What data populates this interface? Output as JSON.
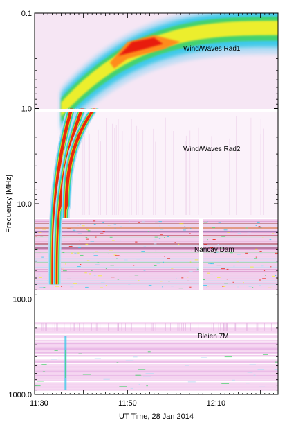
{
  "chart_data": {
    "type": "heatmap",
    "title": "",
    "xlabel": "UT Time, 28 Jan 2014",
    "ylabel": "Frequency [MHz]",
    "x_unit": "UT",
    "x_range": [
      "11:29",
      "12:24"
    ],
    "x_ticks": [
      "11:30",
      "11:50",
      "12:10"
    ],
    "y_scale": "log",
    "y_range": [
      0.1,
      1000.0
    ],
    "y_ticks": [
      "0.1",
      "1.0",
      "10.0",
      "100.0",
      "1000.0"
    ],
    "colormap": [
      "#f2d8f0",
      "#b8dcf4",
      "#33c8e8",
      "#44d36a",
      "#f5f02a",
      "#ff8c1a",
      "#e81c0c"
    ],
    "instruments": [
      {
        "label": "Wind/Waves Rad1",
        "freq_range_mhz": [
          0.1,
          1.0
        ]
      },
      {
        "label": "Wind/Waves Rad2",
        "freq_range_mhz": [
          1.0,
          14.0
        ]
      },
      {
        "label": "Nancay Dam",
        "freq_range_mhz": [
          14.0,
          80.0
        ]
      },
      {
        "label": "Bleien 7M",
        "freq_range_mhz": [
          170.0,
          900.0
        ]
      }
    ],
    "bursts": [
      {
        "kind": "type III drift",
        "start_time": "11:33",
        "start_freq_mhz": 70.0,
        "end_time": "11:45",
        "end_freq_mhz": 0.3
      },
      {
        "kind": "type III drift",
        "start_time": "11:34",
        "start_freq_mhz": 70.0,
        "end_time": "11:50",
        "end_freq_mhz": 0.25
      },
      {
        "kind": "type III drift",
        "start_time": "11:36",
        "start_freq_mhz": 14.0,
        "end_time": "11:54",
        "end_freq_mhz": 0.2
      }
    ],
    "grid": false,
    "legend": "none"
  }
}
